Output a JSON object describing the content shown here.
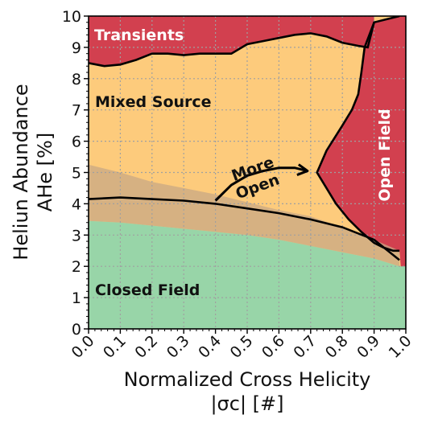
{
  "chart_data": {
    "type": "area",
    "xlabel": "Normalized Cross Helicity",
    "xunit": "|σc| [#]",
    "ylabel": "Heliun Abundance",
    "yunit": "AHe [%]",
    "xlim": [
      0.0,
      1.0
    ],
    "ylim": [
      0,
      10
    ],
    "x_ticks": [
      "0.0",
      "0.1",
      "0.2",
      "0.3",
      "0.4",
      "0.5",
      "0.6",
      "0.7",
      "0.8",
      "0.9",
      "1.0"
    ],
    "y_ticks": [
      "0",
      "1",
      "2",
      "3",
      "4",
      "5",
      "6",
      "7",
      "8",
      "9",
      "10"
    ],
    "grid": true,
    "regions": [
      {
        "label": "Transients",
        "color": "#d2404f"
      },
      {
        "label": "Mixed Source",
        "color": "#fdcb7c"
      },
      {
        "label": "Open Field",
        "color": "#d2404f"
      },
      {
        "label": "Closed Field",
        "color": "#98d5a8"
      }
    ],
    "annotation": {
      "text_line1": "More",
      "text_line2": "Open"
    },
    "boundaries": {
      "closed_mixed": {
        "x": [
          0.0,
          0.1,
          0.2,
          0.3,
          0.4,
          0.5,
          0.6,
          0.7,
          0.8,
          0.9,
          0.98
        ],
        "y": [
          4.15,
          4.2,
          4.15,
          4.1,
          4.0,
          3.85,
          3.7,
          3.5,
          3.25,
          2.85,
          2.2
        ]
      },
      "closed_band_upper": {
        "x": [
          0.0,
          0.1,
          0.2,
          0.3,
          0.4,
          0.5,
          0.6,
          0.7,
          0.8,
          0.9,
          0.98
        ],
        "y": [
          5.25,
          5.0,
          4.7,
          4.5,
          4.3,
          4.05,
          3.8,
          3.6,
          3.25,
          2.85,
          2.5
        ]
      },
      "closed_band_lower": {
        "x": [
          0.0,
          0.1,
          0.2,
          0.3,
          0.4,
          0.5,
          0.6,
          0.7,
          0.8,
          0.9,
          0.98
        ],
        "y": [
          3.45,
          3.4,
          3.3,
          3.2,
          3.1,
          3.0,
          2.85,
          2.65,
          2.45,
          2.25,
          2.0
        ]
      },
      "transient_lower": {
        "x": [
          0.0,
          0.05,
          0.1,
          0.15,
          0.2,
          0.25,
          0.3,
          0.35,
          0.4,
          0.45,
          0.5,
          0.55,
          0.6,
          0.65,
          0.7,
          0.75,
          0.8,
          0.85,
          0.88,
          0.9
        ],
        "y": [
          8.5,
          8.4,
          8.45,
          8.6,
          8.8,
          8.8,
          8.75,
          8.8,
          8.8,
          8.8,
          9.1,
          9.2,
          9.3,
          9.4,
          9.45,
          9.35,
          9.15,
          9.05,
          9.0,
          9.8
        ]
      },
      "open_left": {
        "x": [
          0.98,
          0.9,
          0.87,
          0.86,
          0.85,
          0.83,
          0.8,
          0.75,
          0.72,
          0.75,
          0.78,
          0.82,
          0.86,
          0.9,
          0.93,
          0.96,
          0.98
        ],
        "y": [
          10.0,
          9.8,
          9.0,
          8.2,
          7.5,
          7.0,
          6.5,
          5.7,
          5.0,
          4.5,
          4.0,
          3.5,
          3.1,
          2.75,
          2.6,
          2.5,
          2.5
        ]
      }
    },
    "arrow": {
      "x": [
        0.4,
        0.45,
        0.5,
        0.55,
        0.6,
        0.65,
        0.69
      ],
      "y": [
        4.1,
        4.6,
        4.9,
        5.05,
        5.15,
        5.15,
        5.05
      ]
    }
  }
}
